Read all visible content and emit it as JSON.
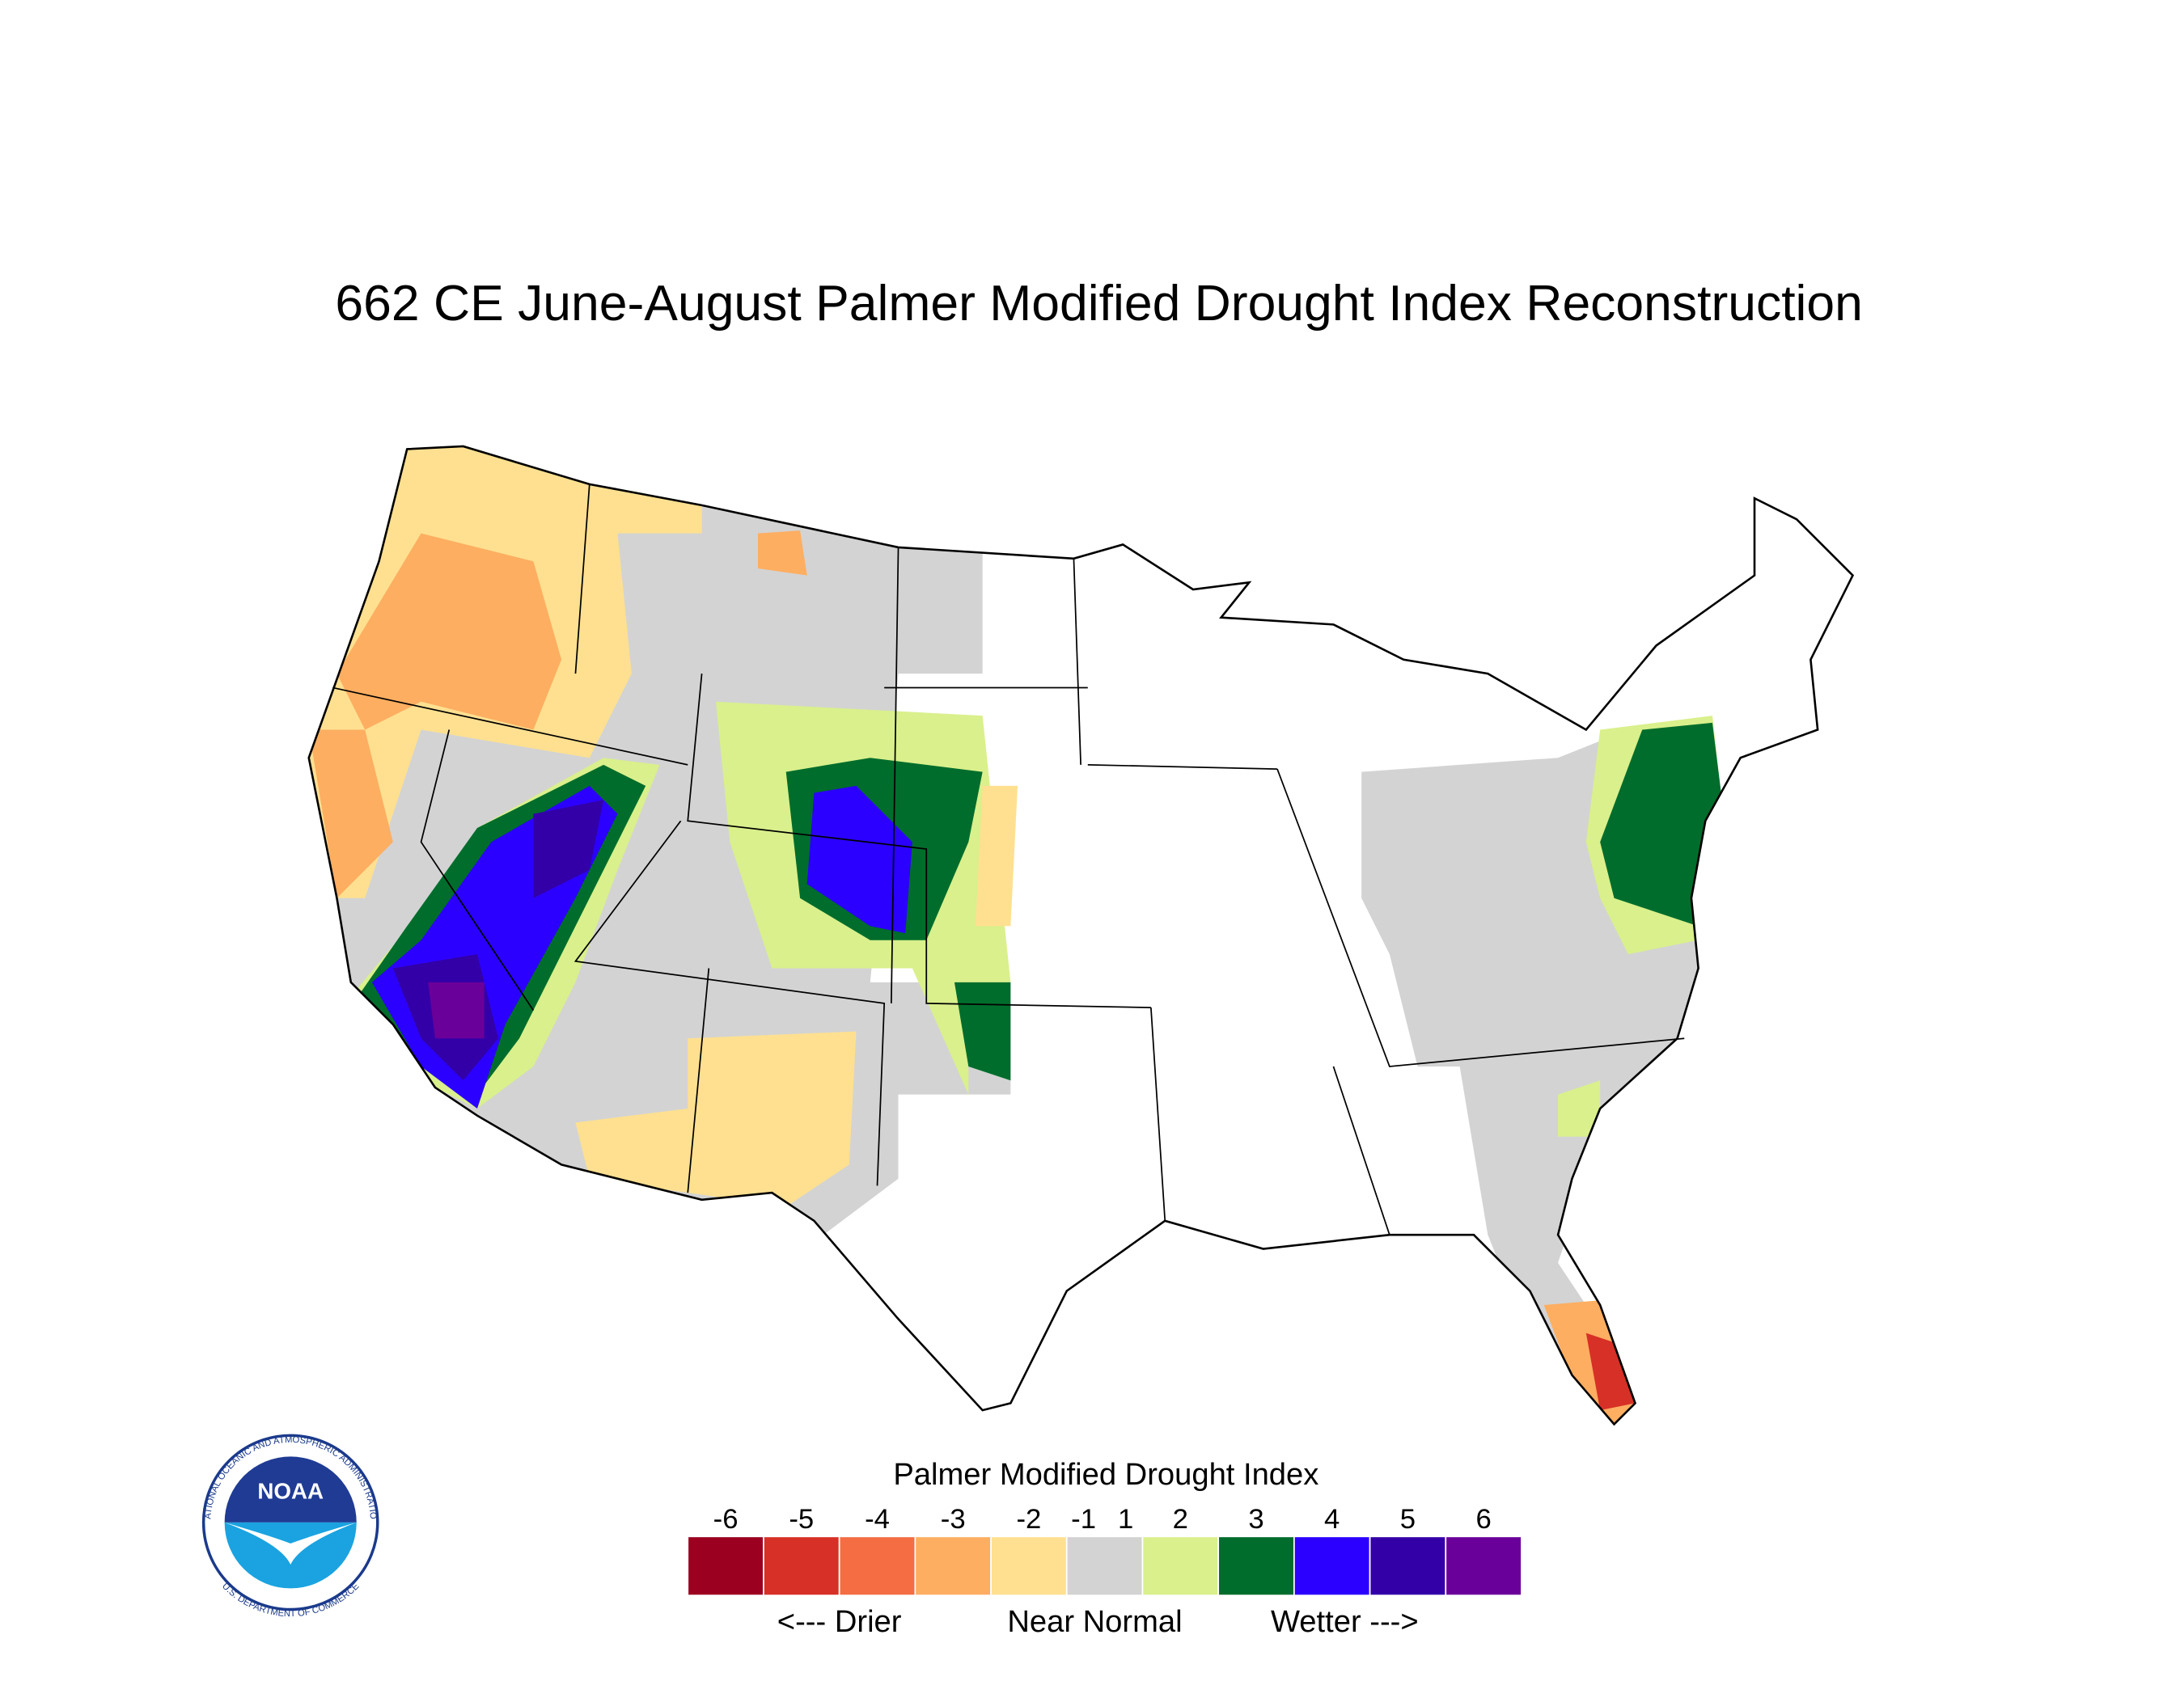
{
  "title": "662 CE  June-August  Palmer Modified Drought Index Reconstruction",
  "legend": {
    "title": "Palmer Modified Drought Index",
    "ticks": [
      -6,
      -5,
      -4,
      -3,
      -2,
      -1,
      1,
      2,
      3,
      4,
      5,
      6
    ],
    "colors": [
      "#9b0020",
      "#d73027",
      "#f46d43",
      "#fdae61",
      "#fee090",
      "#d3d3d3",
      "#d9f08c",
      "#006d2c",
      "#2b00ff",
      "#3300a8",
      "#6a0099"
    ],
    "descriptors": [
      "<--- Drier",
      "Near Normal",
      "Wetter --->"
    ]
  },
  "logo": {
    "name": "NOAA",
    "ring_top": "NATIONAL OCEANIC AND ATMOSPHERIC ADMINISTRATION",
    "ring_bottom": "U.S. DEPARTMENT OF COMMERCE"
  }
}
